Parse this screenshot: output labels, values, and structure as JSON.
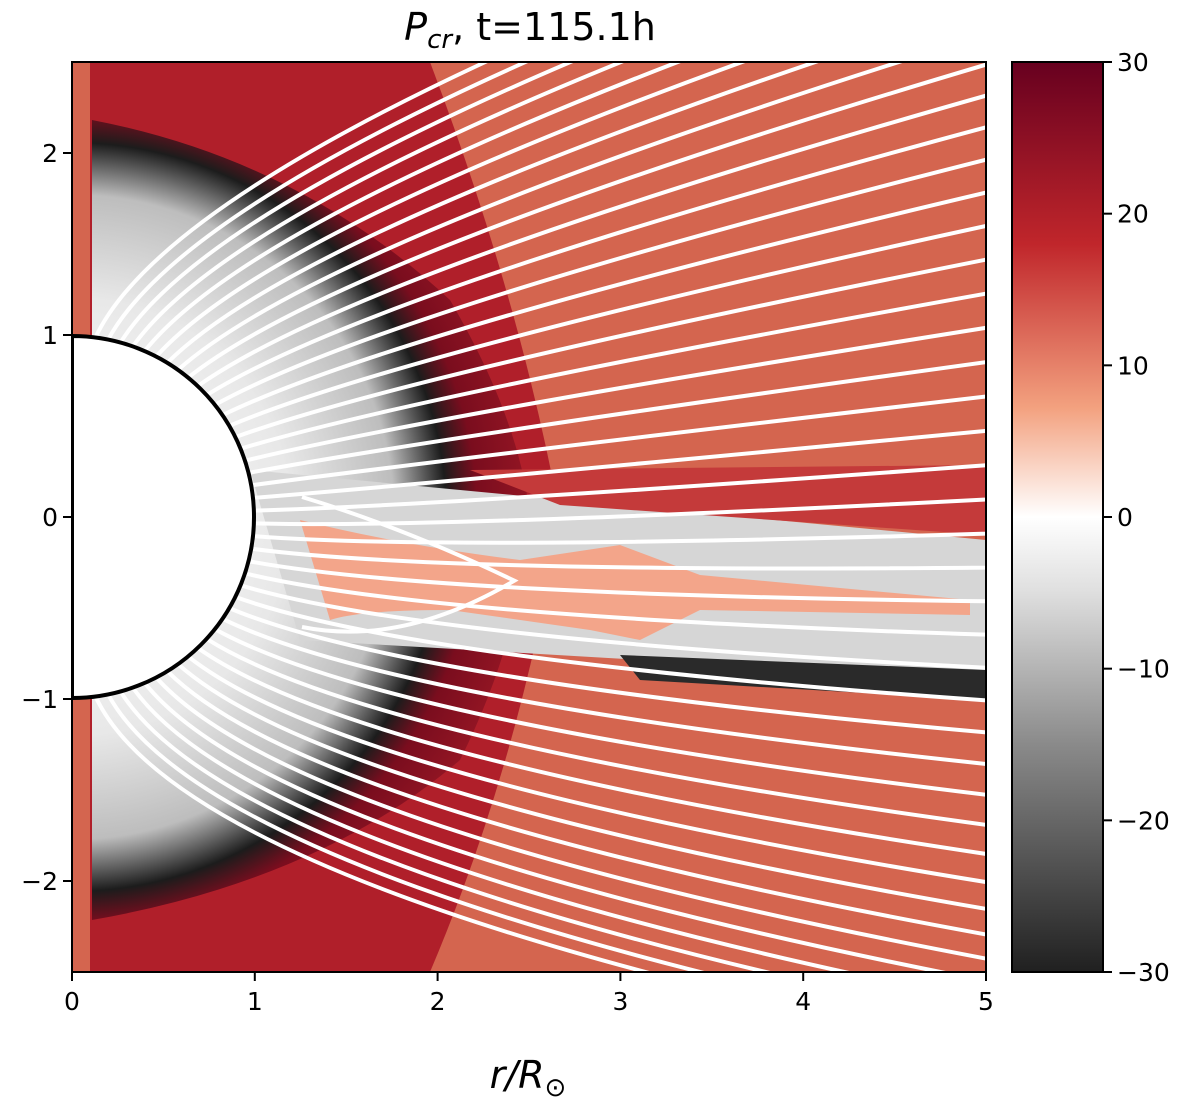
{
  "chart_data": {
    "type": "heatmap",
    "title_main": "P",
    "title_sub": "cr",
    "title_rest": ", t=115.1h",
    "xlabel_main": "r/R",
    "xlabel_symbol": "⊙",
    "ylabel": "",
    "xlim": [
      0,
      5
    ],
    "ylim": [
      -2.5,
      2.5
    ],
    "x_ticks": [
      0,
      1,
      2,
      3,
      4,
      5
    ],
    "x_tick_labels": [
      "0",
      "1",
      "2",
      "3",
      "4",
      "5"
    ],
    "y_ticks": [
      2,
      1,
      0,
      -1,
      -2
    ],
    "y_tick_labels": [
      "2",
      "1",
      "0",
      "−1",
      "−2"
    ],
    "grid": false,
    "colormap": "RdGy (reversed)",
    "colorbar": {
      "range": [
        -30,
        30
      ],
      "ticks": [
        30,
        20,
        10,
        0,
        -10,
        -20,
        -30
      ],
      "tick_labels": [
        "30",
        "20",
        "10",
        "0",
        "−10",
        "−20",
        "−30"
      ],
      "colors": [
        "#202020",
        "#8a8a8a",
        "#e0e0e0",
        "#ffffff",
        "#f3a17f",
        "#c0262b",
        "#67001f"
      ]
    },
    "sun_disk": {
      "center": [
        0,
        0
      ],
      "radius": 1
    },
    "field_lines": {
      "count": 42,
      "color": "#ffffff"
    }
  }
}
